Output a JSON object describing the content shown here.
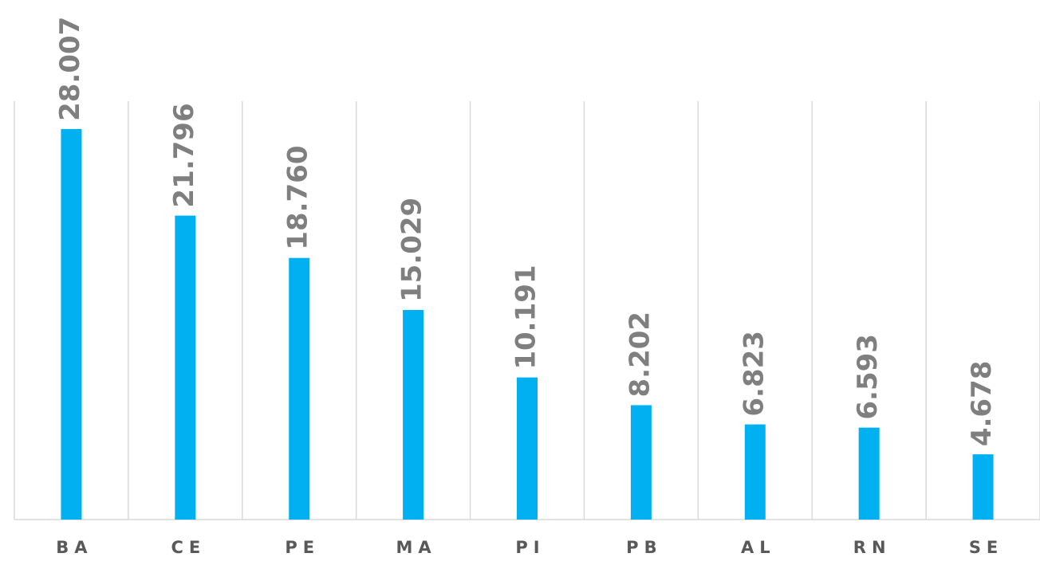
{
  "chart_data": {
    "type": "bar",
    "categories": [
      "BA",
      "CE",
      "PE",
      "MA",
      "PI",
      "PB",
      "AL",
      "RN",
      "SE"
    ],
    "values": [
      28.007,
      21.796,
      18.76,
      15.029,
      10.191,
      8.202,
      6.823,
      6.593,
      4.678
    ],
    "value_labels": [
      "28.007",
      "21.796",
      "18.760",
      "15.029",
      "10.191",
      "8.202",
      "6.823",
      "6.593",
      "4.678"
    ],
    "color": "#00b0f0",
    "ylim": [
      0,
      30
    ]
  }
}
